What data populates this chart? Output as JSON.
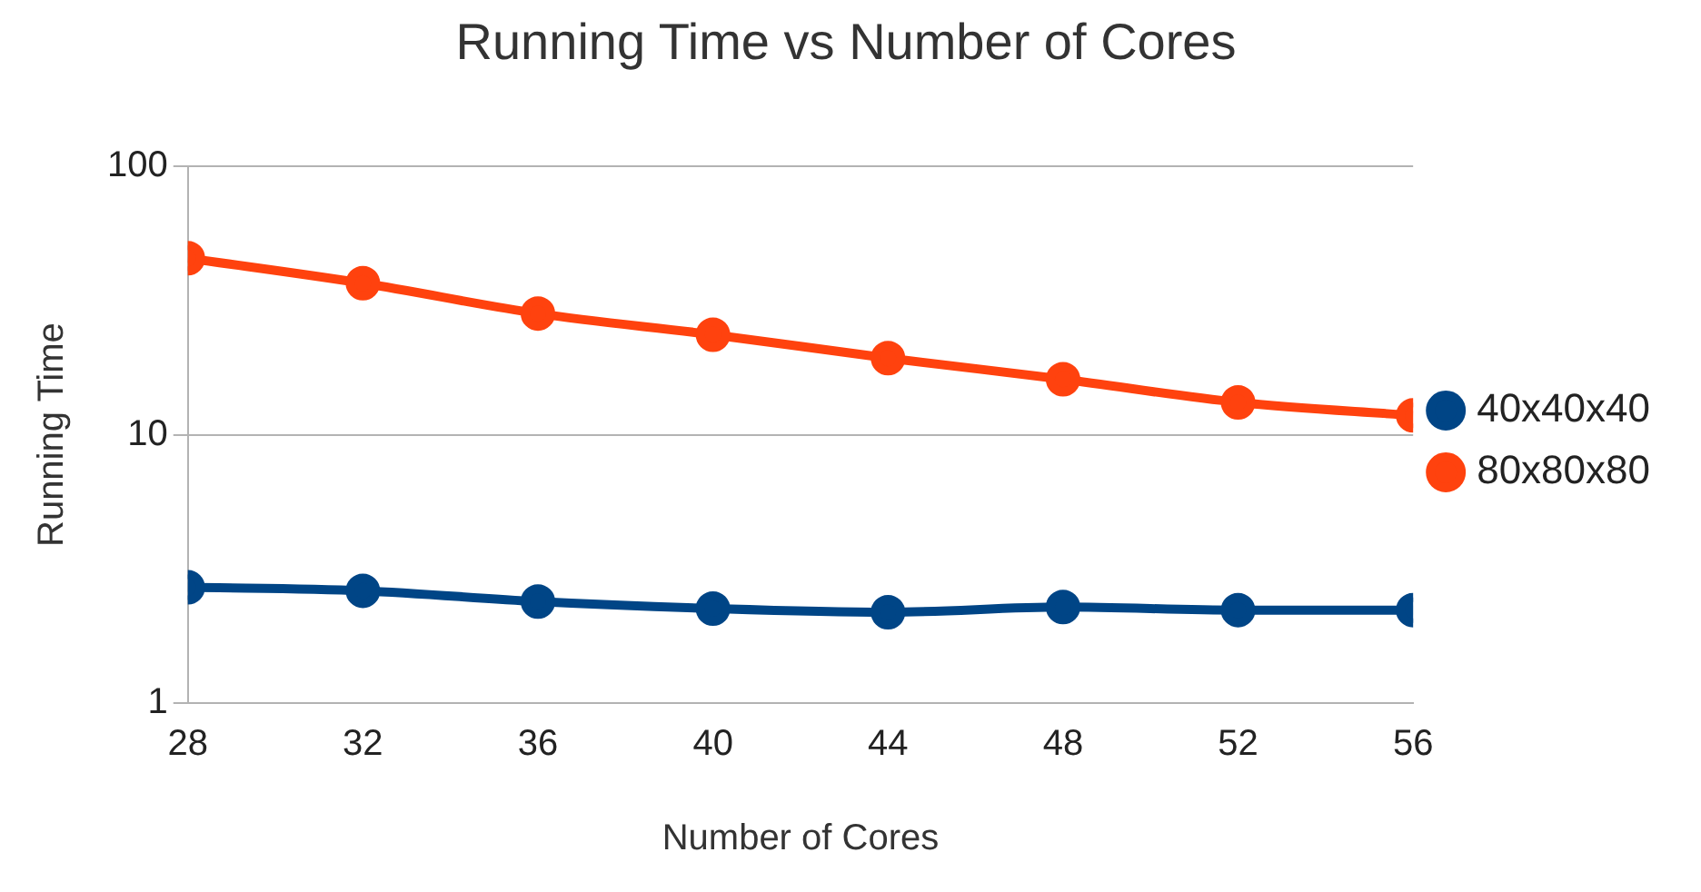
{
  "chart_data": {
    "type": "line",
    "title": "Running Time vs Number of Cores",
    "xlabel": "Number of Cores",
    "ylabel": "Running Time",
    "x": [
      28,
      32,
      36,
      40,
      44,
      48,
      52,
      56
    ],
    "xlim": [
      28,
      56
    ],
    "xticks": [
      28,
      32,
      36,
      40,
      44,
      48,
      52,
      56
    ],
    "ylim": [
      1,
      100
    ],
    "yticks": [
      1,
      10,
      100
    ],
    "log": "y",
    "grid": "y",
    "legend": "right",
    "marker": "circle",
    "series": [
      {
        "name": "40x40x40",
        "color": "#004586",
        "values": [
          2.7,
          2.62,
          2.39,
          2.25,
          2.18,
          2.28,
          2.22,
          2.22
        ]
      },
      {
        "name": "80x80x80",
        "color": "#ff420e",
        "values": [
          45.5,
          36.7,
          28.3,
          23.6,
          19.3,
          16.1,
          13.2,
          11.8
        ]
      }
    ]
  }
}
